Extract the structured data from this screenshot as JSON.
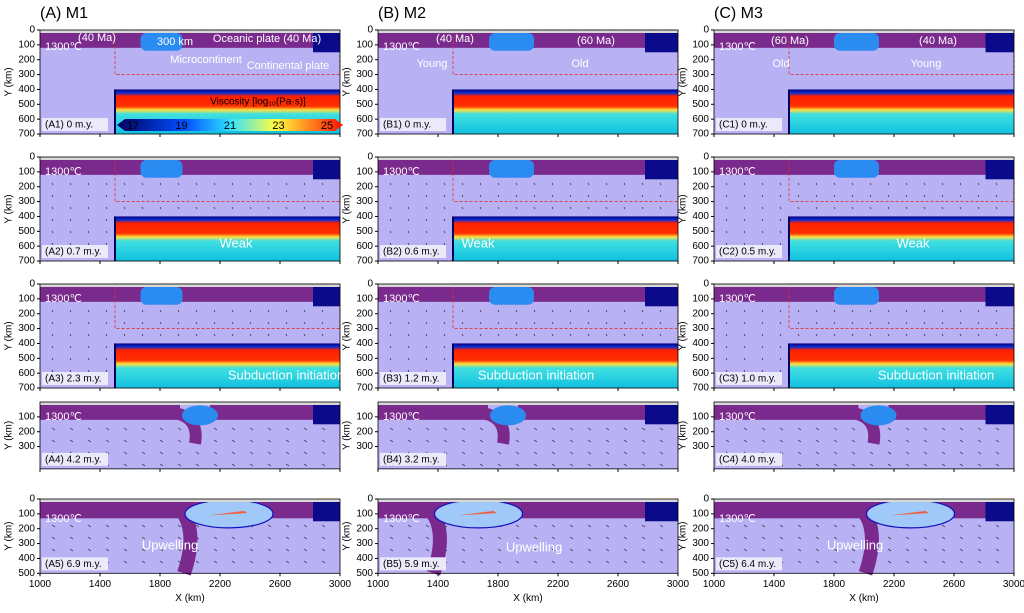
{
  "columns": [
    "(A) M1",
    "(B) M2",
    "(C) M3"
  ],
  "y_axis_label": "Y (km)",
  "x_axis_label": "X (km)",
  "y_ticks_full": [
    0,
    100,
    200,
    300,
    400,
    500,
    600,
    700
  ],
  "y_ticks_short": [
    100,
    200,
    300
  ],
  "y_ticks_bottom": [
    0,
    100,
    200,
    300,
    400,
    500
  ],
  "x_ticks": [
    1000,
    1400,
    1800,
    2200,
    2600,
    3000
  ],
  "colorbar": {
    "title": "Viscosity [log₁₀(Pa·s)]",
    "ticks": [
      17,
      19,
      21,
      23,
      25
    ]
  },
  "panels": [
    [
      {
        "label": "(A1) 0 m.y.",
        "notes": [
          "1300℃",
          "(40 Ma)",
          "300 km",
          "Oceanic plate (40 Ma)",
          "Microcontinent",
          "Continental plate"
        ]
      },
      {
        "label": "(B1) 0 m.y.",
        "notes": [
          "1300℃",
          "(40 Ma)",
          "(60 Ma)",
          "Young",
          "Old"
        ]
      },
      {
        "label": "(C1) 0 m.y.",
        "notes": [
          "1300℃",
          "(60 Ma)",
          "(40 Ma)",
          "Old",
          "Young"
        ]
      }
    ],
    [
      {
        "label": "(A2) 0.7 m.y.",
        "notes": [
          "1300℃",
          "Weak"
        ]
      },
      {
        "label": "(B2) 0.6 m.y.",
        "notes": [
          "1300℃",
          "Weak"
        ]
      },
      {
        "label": "(C2) 0.5 m.y.",
        "notes": [
          "1300℃",
          "Weak"
        ]
      }
    ],
    [
      {
        "label": "(A3) 2.3 m.y.",
        "notes": [
          "1300℃",
          "Subduction initiation"
        ]
      },
      {
        "label": "(B3) 1.2 m.y.",
        "notes": [
          "1300℃",
          "Subduction initiation"
        ]
      },
      {
        "label": "(C3) 1.0 m.y.",
        "notes": [
          "1300℃",
          "Subduction initiation"
        ]
      }
    ],
    [
      {
        "label": "(A4) 4.2 m.y.",
        "notes": [
          "1300℃"
        ]
      },
      {
        "label": "(B4) 3.2 m.y.",
        "notes": [
          "1300℃"
        ]
      },
      {
        "label": "(C4) 4.0 m.y.",
        "notes": [
          "1300℃"
        ]
      }
    ],
    [
      {
        "label": "(A5) 6.9 m.y.",
        "notes": [
          "1300℃",
          "Upwelling"
        ]
      },
      {
        "label": "(B5) 5.9 m.y.",
        "notes": [
          "1300℃",
          "Upwelling"
        ]
      },
      {
        "label": "(C5) 6.4 m.y.",
        "notes": [
          "1300℃",
          "Upwelling"
        ]
      }
    ]
  ]
}
